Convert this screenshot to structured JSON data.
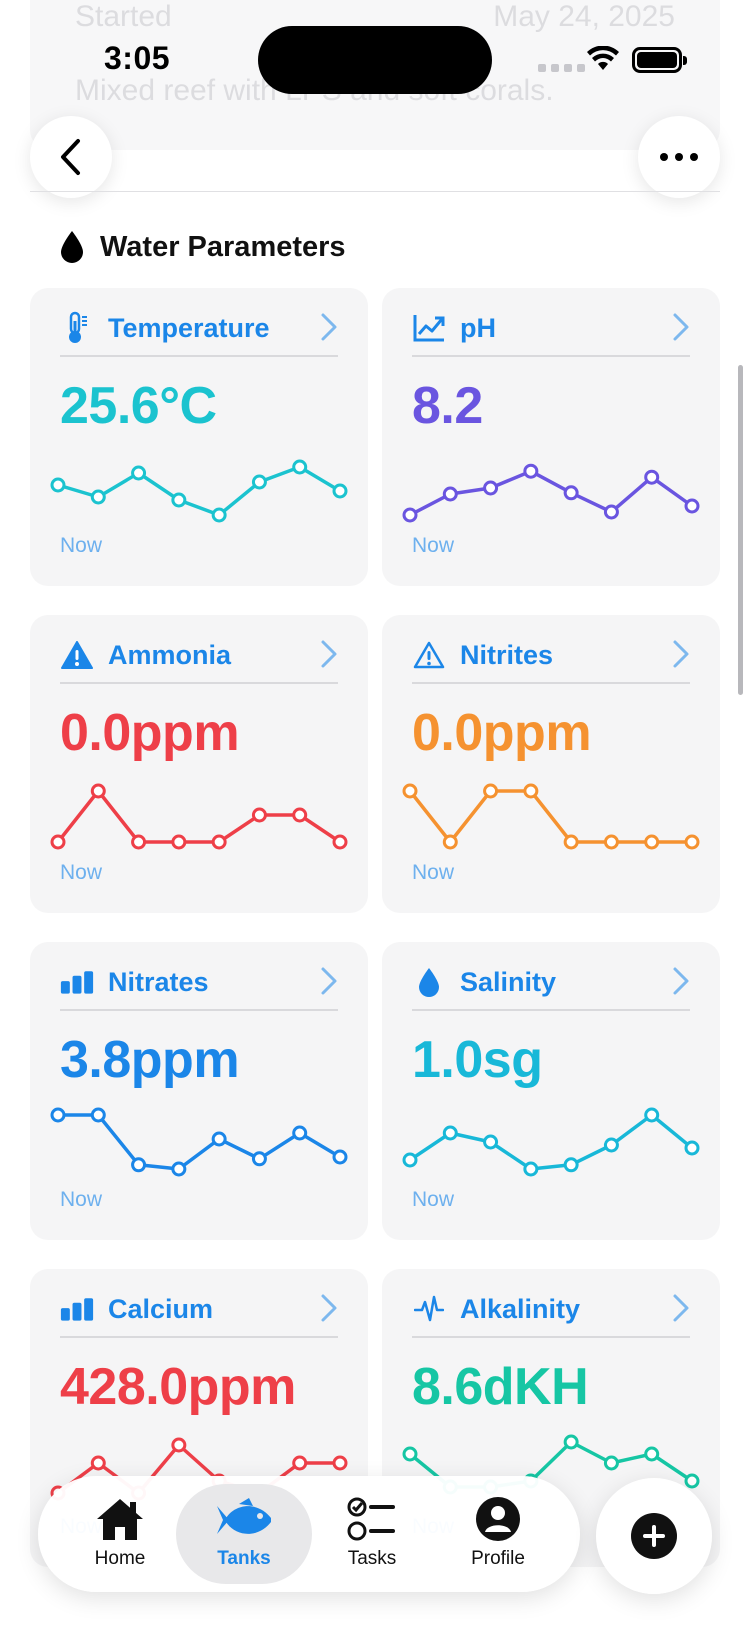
{
  "status_bar": {
    "time": "3:05"
  },
  "ghost": {
    "label": "Started",
    "date": "May 24, 2025",
    "description": "Mixed reef with LPS and soft corals."
  },
  "section": {
    "title": "Water Parameters"
  },
  "cards": [
    {
      "title": "Temperature",
      "value": "25.6°C",
      "time": "Now",
      "color": "#1bc3cf",
      "icon": "thermometer-icon",
      "trend": [
        0.55,
        0.35,
        0.75,
        0.3,
        0.05,
        0.6,
        0.85,
        0.45
      ]
    },
    {
      "title": "pH",
      "value": "8.2",
      "time": "Now",
      "color": "#6a55e0",
      "icon": "trend-chart-icon",
      "trend": [
        0.05,
        0.4,
        0.5,
        0.78,
        0.42,
        0.1,
        0.68,
        0.2
      ]
    },
    {
      "title": "Ammonia",
      "value": "0.0ppm",
      "time": "Now",
      "color": "#ee3f48",
      "icon": "warning-filled-icon",
      "trend": [
        0.05,
        0.9,
        0.05,
        0.05,
        0.05,
        0.5,
        0.5,
        0.05
      ]
    },
    {
      "title": "Nitrites",
      "value": "0.0ppm",
      "time": "Now",
      "color": "#f59230",
      "icon": "warning-outline-icon",
      "trend": [
        0.9,
        0.05,
        0.9,
        0.9,
        0.05,
        0.05,
        0.05,
        0.05
      ]
    },
    {
      "title": "Nitrates",
      "value": "3.8ppm",
      "time": "Now",
      "color": "#1b86e8",
      "icon": "bar-chart-icon",
      "trend": [
        0.95,
        0.95,
        0.12,
        0.05,
        0.55,
        0.22,
        0.65,
        0.25
      ]
    },
    {
      "title": "Salinity",
      "value": "1.0sg",
      "time": "Now",
      "color": "#18b8d8",
      "icon": "drop-icon",
      "trend": [
        0.2,
        0.65,
        0.5,
        0.05,
        0.12,
        0.45,
        0.95,
        0.4
      ]
    },
    {
      "title": "Calcium",
      "value": "428.0ppm",
      "time": "Now",
      "color": "#ee3f48",
      "icon": "bar-chart-icon",
      "trend": [
        0.1,
        0.6,
        0.1,
        0.9,
        0.3,
        0.1,
        0.6,
        0.6
      ]
    },
    {
      "title": "Alkalinity",
      "value": "8.6dKH",
      "time": "Now",
      "color": "#16c6a4",
      "icon": "waveform-icon",
      "trend": [
        0.75,
        0.2,
        0.2,
        0.3,
        0.95,
        0.6,
        0.75,
        0.3
      ]
    }
  ],
  "tabs": [
    {
      "label": "Home",
      "icon": "house-icon"
    },
    {
      "label": "Tanks",
      "icon": "fish-icon"
    },
    {
      "label": "Tasks",
      "icon": "checklist-icon"
    },
    {
      "label": "Profile",
      "icon": "person-icon"
    }
  ],
  "colors": {
    "accent": "#1b86e8"
  }
}
